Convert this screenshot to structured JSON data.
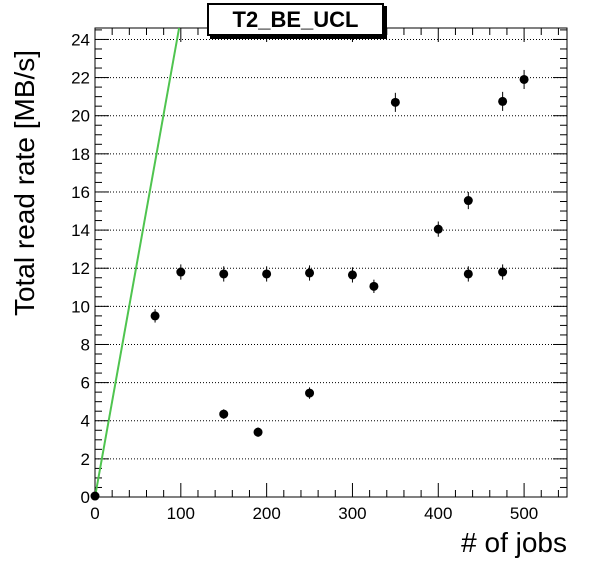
{
  "chart_data": {
    "type": "scatter",
    "title": "T2_BE_UCL",
    "xlabel": "# of jobs",
    "ylabel": "Total read rate [MB/s]",
    "xlim": [
      0,
      550
    ],
    "ylim": [
      0,
      24.6
    ],
    "x_ticks": [
      0,
      100,
      200,
      300,
      400,
      500
    ],
    "y_ticks": [
      0,
      2,
      4,
      6,
      8,
      10,
      12,
      14,
      16,
      18,
      20,
      22,
      24
    ],
    "grid": "dotted horizontal lines at y ticks",
    "colors": {
      "points": "#000000",
      "line": "#4fc44f",
      "grid": "#000000"
    },
    "points": [
      {
        "x": 0,
        "y": 0.05,
        "yerr": 0.05
      },
      {
        "x": 70,
        "y": 9.5,
        "yerr": 0.35
      },
      {
        "x": 100,
        "y": 11.8,
        "yerr": 0.4
      },
      {
        "x": 150,
        "y": 4.35,
        "yerr": 0.25
      },
      {
        "x": 150,
        "y": 11.7,
        "yerr": 0.4
      },
      {
        "x": 190,
        "y": 3.4,
        "yerr": 0.25
      },
      {
        "x": 200,
        "y": 11.7,
        "yerr": 0.4
      },
      {
        "x": 250,
        "y": 5.45,
        "yerr": 0.3
      },
      {
        "x": 250,
        "y": 11.75,
        "yerr": 0.4
      },
      {
        "x": 300,
        "y": 11.65,
        "yerr": 0.4
      },
      {
        "x": 325,
        "y": 11.05,
        "yerr": 0.35
      },
      {
        "x": 350,
        "y": 20.7,
        "yerr": 0.5
      },
      {
        "x": 400,
        "y": 14.05,
        "yerr": 0.4
      },
      {
        "x": 435,
        "y": 15.55,
        "yerr": 0.45
      },
      {
        "x": 435,
        "y": 11.7,
        "yerr": 0.4
      },
      {
        "x": 475,
        "y": 20.75,
        "yerr": 0.5
      },
      {
        "x": 475,
        "y": 11.8,
        "yerr": 0.4
      },
      {
        "x": 500,
        "y": 21.9,
        "yerr": 0.5
      }
    ],
    "reference_line": {
      "x": [
        0,
        98
      ],
      "y": [
        0,
        24.6
      ]
    }
  }
}
